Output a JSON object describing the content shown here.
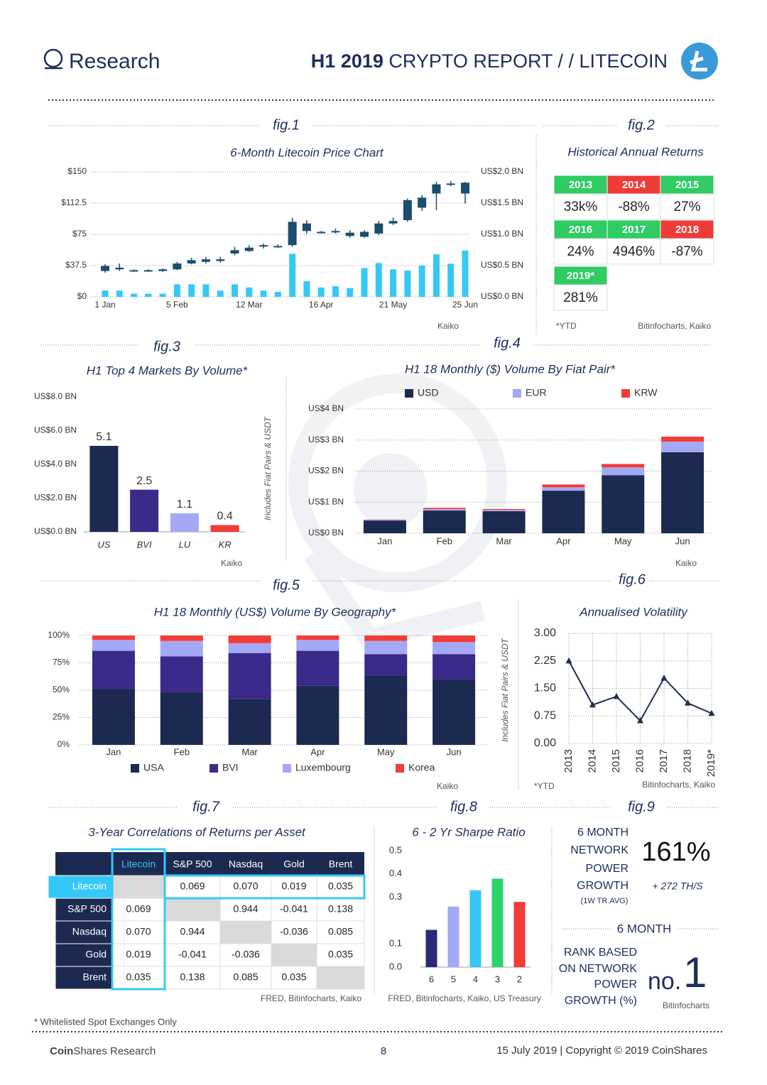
{
  "header": {
    "brand": "Research",
    "report_bold": "H1 2019",
    "report": " CRYPTO REPORT / / LITECOIN"
  },
  "chart_data": [
    {
      "figure": "fig.1",
      "type": "candlestick",
      "title": "6-Month Litecoin Price Chart",
      "source": "Kaiko",
      "grid": true,
      "categories": [
        "1 Jan",
        null,
        null,
        null,
        null,
        "5 Feb",
        null,
        null,
        null,
        null,
        "12 Mar",
        null,
        null,
        null,
        null,
        "16 Apr",
        null,
        null,
        null,
        null,
        "21 May",
        null,
        null,
        null,
        null,
        "25 Jun"
      ],
      "ohlc": {
        "color": "#1b4d6e",
        "open": [
          31,
          35,
          32,
          31,
          31,
          33,
          40,
          42,
          43,
          52,
          55,
          62,
          61,
          62,
          88,
          78,
          78,
          77,
          72,
          76,
          88,
          92,
          107,
          124,
          135,
          137
        ],
        "high": [
          39,
          40,
          33,
          33,
          34,
          42,
          47,
          48,
          48,
          60,
          62,
          64,
          63,
          95,
          92,
          79,
          82,
          80,
          80,
          91,
          95,
          118,
          122,
          138,
          139,
          138
        ],
        "low": [
          29,
          31,
          30,
          30,
          30,
          32,
          39,
          40,
          41,
          50,
          54,
          58,
          59,
          60,
          76,
          76,
          76,
          71,
          71,
          74,
          86,
          90,
          103,
          104,
          133,
          112
        ],
        "close": [
          37,
          33,
          31,
          32,
          33,
          40,
          44,
          45,
          45,
          56,
          59,
          61,
          61,
          90,
          79,
          78,
          79,
          73,
          78,
          88,
          91,
          116,
          119,
          135,
          136,
          124
        ]
      },
      "volume": {
        "color": "#35c8f6",
        "axis": "y2",
        "values": [
          0.1,
          0.1,
          0.05,
          0.05,
          0.05,
          0.2,
          0.2,
          0.2,
          0.1,
          0.2,
          0.15,
          0.1,
          0.08,
          0.69,
          0.25,
          0.15,
          0.17,
          0.14,
          0.46,
          0.54,
          0.44,
          0.42,
          0.5,
          0.68,
          0.53,
          0.74
        ]
      },
      "ylim": [
        0,
        150
      ],
      "yticks": [
        {
          "value": 0,
          "label": "$0"
        },
        {
          "value": 37.5,
          "label": "$37.5"
        },
        {
          "value": 75,
          "label": "$75"
        },
        {
          "value": 112.5,
          "label": "$112.5"
        },
        {
          "value": 150,
          "label": "$150"
        }
      ],
      "y2lim": [
        0,
        2
      ],
      "y2ticks": [
        {
          "value": 0,
          "label": "US$0.0 BN"
        },
        {
          "value": 0.5,
          "label": "US$0.5 BN"
        },
        {
          "value": 1,
          "label": "US$1.0 BN"
        },
        {
          "value": 1.5,
          "label": "US$1.5 BN"
        },
        {
          "value": 2,
          "label": "US$2.0 BN"
        }
      ]
    },
    {
      "figure": "fig.3",
      "type": "bar",
      "title": "H1 Top 4 Markets By Volume*",
      "axis_label": "Includes Fiat Pairs & USDT",
      "source": "Kaiko",
      "categories": [
        "US",
        "BVI",
        "LU",
        "KR"
      ],
      "values": [
        5.1,
        2.5,
        1.1,
        0.4
      ],
      "colors": [
        "#1c2951",
        "#3a2a8a",
        "#a4a9f5",
        "#f23c36"
      ],
      "ylim": [
        0,
        8
      ],
      "yticks": [
        {
          "value": 0,
          "label": "US$0.0 BN"
        },
        {
          "value": 2,
          "label": "US$2.0 BN"
        },
        {
          "value": 4,
          "label": "US$4.0 BN"
        },
        {
          "value": 6,
          "label": "US$6.0 BN"
        },
        {
          "value": 8,
          "label": "US$8.0 BN"
        }
      ]
    },
    {
      "figure": "fig.4",
      "type": "stacked_bar",
      "title": "H1 18 Monthly ($) Volume By Fiat Pair*",
      "source": "Kaiko",
      "legend": "top",
      "grid": true,
      "categories": [
        "Jan",
        "Feb",
        "Mar",
        "Apr",
        "May",
        "Jun"
      ],
      "series": [
        {
          "name": "USD",
          "color": "#1c2951",
          "values": [
            0.41,
            0.73,
            0.71,
            1.37,
            1.87,
            2.61
          ]
        },
        {
          "name": "EUR",
          "color": "#a4a9f5",
          "values": [
            0.02,
            0.05,
            0.04,
            0.11,
            0.25,
            0.34
          ]
        },
        {
          "name": "KRW",
          "color": "#f23c36",
          "values": [
            0.01,
            0.04,
            0.03,
            0.09,
            0.11,
            0.16
          ]
        }
      ],
      "ylim": [
        0,
        4
      ],
      "yticks": [
        {
          "value": 0,
          "label": "US$0 BN"
        },
        {
          "value": 1,
          "label": "US$1 BN"
        },
        {
          "value": 2,
          "label": "US$2 BN"
        },
        {
          "value": 3,
          "label": "US$3 BN"
        },
        {
          "value": 4,
          "label": "US$4 BN"
        }
      ]
    },
    {
      "figure": "fig.5",
      "type": "stacked_bar",
      "title": "H1 18 Monthly (US$) Volume By Geography*",
      "axis_label": "Includes Fiat Pairs & USDT",
      "source": "Kaiko",
      "legend": "bottom",
      "grid": true,
      "categories": [
        "Jan",
        "Feb",
        "Mar",
        "Apr",
        "May",
        "Jun"
      ],
      "series": [
        {
          "name": "USA",
          "color": "#1c2951",
          "values": [
            51,
            48,
            42,
            54,
            63,
            60
          ]
        },
        {
          "name": "BVI",
          "color": "#3a2a8a",
          "values": [
            35,
            33,
            42,
            32,
            20,
            23
          ]
        },
        {
          "name": "Luxembourg",
          "color": "#a4a9f5",
          "values": [
            10,
            14,
            9,
            10,
            12,
            11
          ]
        },
        {
          "name": "Korea",
          "color": "#f23c36",
          "values": [
            4,
            5,
            7,
            4,
            5,
            6
          ]
        }
      ],
      "ylim": [
        0,
        100
      ],
      "yticks": [
        {
          "value": 0,
          "label": "0%"
        },
        {
          "value": 25,
          "label": "25%"
        },
        {
          "value": 50,
          "label": "50%"
        },
        {
          "value": 75,
          "label": "75%"
        },
        {
          "value": 100,
          "label": "100%"
        }
      ]
    },
    {
      "figure": "fig.6",
      "type": "line",
      "title": "Annualised Volatility",
      "note": "*YTD",
      "source": "Bitinfocharts, Kaiko",
      "grid": true,
      "color": "#1f2d4f",
      "categories": [
        "2013",
        "2014",
        "2015",
        "2016",
        "2017",
        "2018",
        "2019*"
      ],
      "values": [
        2.25,
        1.05,
        1.28,
        0.62,
        1.78,
        1.1,
        0.82
      ],
      "ylim": [
        0,
        3
      ],
      "yticks": [
        {
          "value": 0,
          "label": "0.00"
        },
        {
          "value": 0.75,
          "label": "0.75"
        },
        {
          "value": 1.5,
          "label": "1.50"
        },
        {
          "value": 2.25,
          "label": "2.25"
        },
        {
          "value": 3,
          "label": "3.00"
        }
      ]
    },
    {
      "figure": "fig.8",
      "type": "bar",
      "title": "6 - 2 Yr Sharpe Ratio",
      "source": "FRED, Bitinfocharts, Kaiko, US Treasury",
      "categories": [
        "6",
        "5",
        "4",
        "3",
        "2"
      ],
      "values": [
        0.16,
        0.26,
        0.33,
        0.38,
        0.28
      ],
      "colors": [
        "#2a2a78",
        "#a4a9f5",
        "#35c8f6",
        "#2dd46a",
        "#f23c36"
      ],
      "ylim": [
        0,
        0.5
      ],
      "yticks": [
        {
          "value": 0,
          "label": "0.0"
        },
        0.1,
        0.3,
        0.4,
        0.5
      ]
    }
  ],
  "returns_table": {
    "figure": "fig.2",
    "title": "Historical Annual Returns",
    "note": "*YTD",
    "source": "Bitinfocharts, Kaiko",
    "cells": [
      {
        "year": "2013",
        "value": "33k%",
        "color": "#2ecc63"
      },
      {
        "year": "2014",
        "value": "-88%",
        "color": "#ef3b37"
      },
      {
        "year": "2015",
        "value": "27%",
        "color": "#2ecc63"
      },
      {
        "year": "2016",
        "value": "24%",
        "color": "#2ecc63"
      },
      {
        "year": "2017",
        "value": "4946%",
        "color": "#2ecc63"
      },
      {
        "year": "2018",
        "value": "-87%",
        "color": "#ef3b37"
      },
      {
        "year": "2019*",
        "value": "281%",
        "color": "#2ecc63"
      }
    ]
  },
  "correlation_table": {
    "figure": "fig.7",
    "title": "3-Year Correlations of Returns per Asset",
    "source": "FRED, Bitinfocharts, Kaiko",
    "columns": [
      "Litecoin",
      "S&P 500",
      "Nasdaq",
      "Gold",
      "Brent"
    ],
    "rows": [
      {
        "label": "Litecoin",
        "values": [
          null,
          "0.069",
          "0.070",
          "0.019",
          "0.035"
        ]
      },
      {
        "label": "S&P 500",
        "values": [
          "0.069",
          null,
          "0.944",
          "-0.041",
          "0.138"
        ]
      },
      {
        "label": "Nasdaq",
        "values": [
          "0.070",
          "0.944",
          null,
          "-0.036",
          "0.085"
        ]
      },
      {
        "label": "Gold",
        "values": [
          "0.019",
          "-0.041",
          "-0.036",
          null,
          "0.035"
        ]
      },
      {
        "label": "Brent",
        "values": [
          "0.035",
          "0.138",
          "0.085",
          "0.035",
          null
        ]
      }
    ]
  },
  "network_power": {
    "figure": "fig.9",
    "growth_label": [
      "6 MONTH",
      "NETWORK",
      "POWER",
      "GROWTH"
    ],
    "growth_note": "(1W TR.AVG)",
    "growth_value": "161%",
    "growth_hash": "+ 272 TH/S",
    "rank_heading": "6 MONTH",
    "rank_label": [
      "RANK BASED",
      "ON NETWORK",
      "POWER",
      "GROWTH (%)"
    ],
    "rank_prefix": "no.",
    "rank_value": "1",
    "source": "Bitinfocharts"
  },
  "footnote": "* Whitelisted Spot Exchanges Only",
  "footer": {
    "brand_bold": "Coin",
    "brand": "Shares Research",
    "page": "8",
    "copyright": "15 July 2019  |  Copyright © 2019 CoinShares"
  }
}
